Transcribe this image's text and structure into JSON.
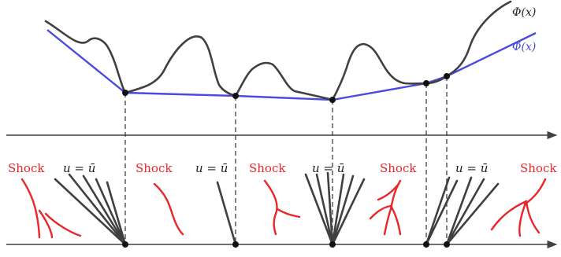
{
  "labels": {
    "phi": "Φ(x)",
    "phi_bar": "Φ̄(x)",
    "shock": "Shock",
    "u_eq_ubar": "u = ū"
  },
  "colors": {
    "phi_curve": "#404040",
    "convex_hull": "#4a4adf",
    "shock": "#e8262b",
    "characteristics": "#404040",
    "axis": "#404040"
  },
  "bottom_labels": [
    {
      "kind": "shock",
      "text_key": "shock"
    },
    {
      "kind": "u_eq_ubar",
      "text_key": "u_eq_ubar"
    },
    {
      "kind": "shock",
      "text_key": "shock"
    },
    {
      "kind": "u_eq_ubar",
      "text_key": "u_eq_ubar"
    },
    {
      "kind": "shock",
      "text_key": "shock"
    },
    {
      "kind": "u_eq_ubar",
      "text_key": "u_eq_ubar"
    },
    {
      "kind": "shock",
      "text_key": "shock"
    },
    {
      "kind": "u_eq_ubar",
      "text_key": "u_eq_ubar"
    },
    {
      "kind": "shock",
      "text_key": "shock"
    }
  ]
}
